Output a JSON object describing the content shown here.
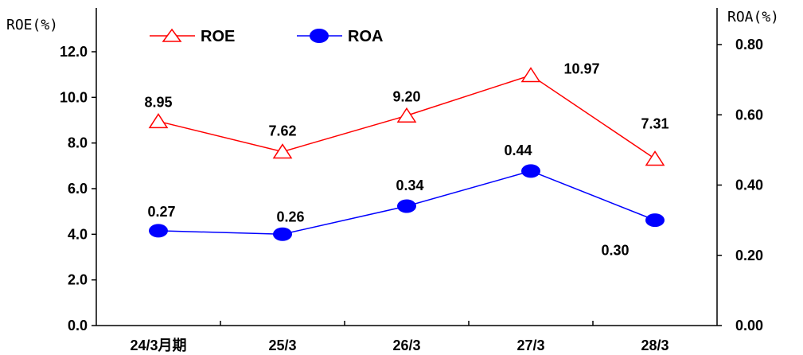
{
  "chart_data": {
    "type": "line",
    "categories": [
      "24/3月期",
      "25/3",
      "26/3",
      "27/3",
      "28/3"
    ],
    "series": [
      {
        "name": "ROE",
        "axis": "left",
        "values": [
          8.95,
          7.62,
          9.2,
          10.97,
          7.31
        ],
        "labels": [
          "8.95",
          "7.62",
          "9.20",
          "10.97",
          "7.31"
        ],
        "color": "#ff0000",
        "marker": "triangle-open"
      },
      {
        "name": "ROA",
        "axis": "right",
        "values": [
          0.27,
          0.26,
          0.34,
          0.44,
          0.3
        ],
        "labels": [
          "0.27",
          "0.26",
          "0.34",
          "0.44",
          "0.30"
        ],
        "color": "#0000ff",
        "marker": "circle-filled"
      }
    ],
    "y_left": {
      "label": "ROE(%)",
      "ylim": [
        0,
        12
      ],
      "ticks": [
        "0.0",
        "2.0",
        "4.0",
        "6.0",
        "8.0",
        "10.0",
        "12.0"
      ]
    },
    "y_right": {
      "label": "ROA(%)",
      "ylim": [
        0,
        0.8
      ],
      "ticks": [
        "0.00",
        "0.20",
        "0.40",
        "0.60",
        "0.80"
      ]
    },
    "legend": [
      "ROE",
      "ROA"
    ],
    "legend_position": "top-left",
    "grid": false
  }
}
